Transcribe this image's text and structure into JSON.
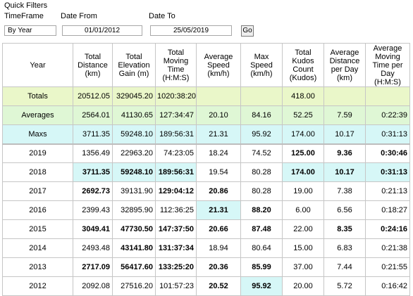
{
  "filters": {
    "title": "Quick Filters",
    "timeframe_label": "TimeFrame",
    "date_from_label": "Date From",
    "date_to_label": "Date To",
    "timeframe_value": "By Year",
    "date_from_value": "01/01/2012",
    "date_to_value": "25/05/2019",
    "go_label": "Go"
  },
  "headers": [
    "Year",
    "Total Distance (km)",
    "Total Elevation Gain (m)",
    "Total Moving Time (H:M:S)",
    "Average Speed (km/h)",
    "Max Speed (km/h)",
    "Total Kudos Count (Kudos)",
    "Average Distance per Day (km)",
    "Average Moving Time per Day (H:M:S)"
  ],
  "summary": {
    "totals": [
      "Totals",
      "20512.05",
      "329045.20",
      "1020:38:20",
      "",
      "",
      "418.00",
      "",
      ""
    ],
    "averages": [
      "Averages",
      "2564.01",
      "41130.65",
      "127:34:47",
      "20.10",
      "84.16",
      "52.25",
      "7.59",
      "0:22:39"
    ],
    "maxs": [
      "Maxs",
      "3711.35",
      "59248.10",
      "189:56:31",
      "21.31",
      "95.92",
      "174.00",
      "10.17",
      "0:31:13"
    ]
  },
  "rows": [
    [
      "2019",
      "1356.49",
      "22963.20",
      "74:23:05",
      "18.24",
      "74.52",
      "125.00",
      "9.36",
      "0:30:46"
    ],
    [
      "2018",
      "3711.35",
      "59248.10",
      "189:56:31",
      "19.54",
      "80.28",
      "174.00",
      "10.17",
      "0:31:13"
    ],
    [
      "2017",
      "2692.73",
      "39131.90",
      "129:04:12",
      "20.86",
      "80.28",
      "19.00",
      "7.38",
      "0:21:13"
    ],
    [
      "2016",
      "2399.43",
      "32895.90",
      "112:36:25",
      "21.31",
      "88.20",
      "6.00",
      "6.56",
      "0:18:27"
    ],
    [
      "2015",
      "3049.41",
      "47730.50",
      "147:37:50",
      "20.66",
      "87.48",
      "22.00",
      "8.35",
      "0:24:16"
    ],
    [
      "2014",
      "2493.48",
      "43141.80",
      "131:37:34",
      "18.94",
      "80.64",
      "15.00",
      "6.83",
      "0:21:38"
    ],
    [
      "2013",
      "2717.09",
      "56417.60",
      "133:25:20",
      "20.36",
      "85.99",
      "37.00",
      "7.44",
      "0:21:55"
    ],
    [
      "2012",
      "2092.08",
      "27516.20",
      "101:57:23",
      "20.52",
      "95.92",
      "20.00",
      "5.72",
      "0:16:42"
    ]
  ],
  "colors": {
    "totals_bg": "#eaf7c9",
    "averages_bg": "#dff7d5",
    "maxs_bg": "#d6f7f7",
    "max_cell_highlight": "#d6f7f7"
  }
}
